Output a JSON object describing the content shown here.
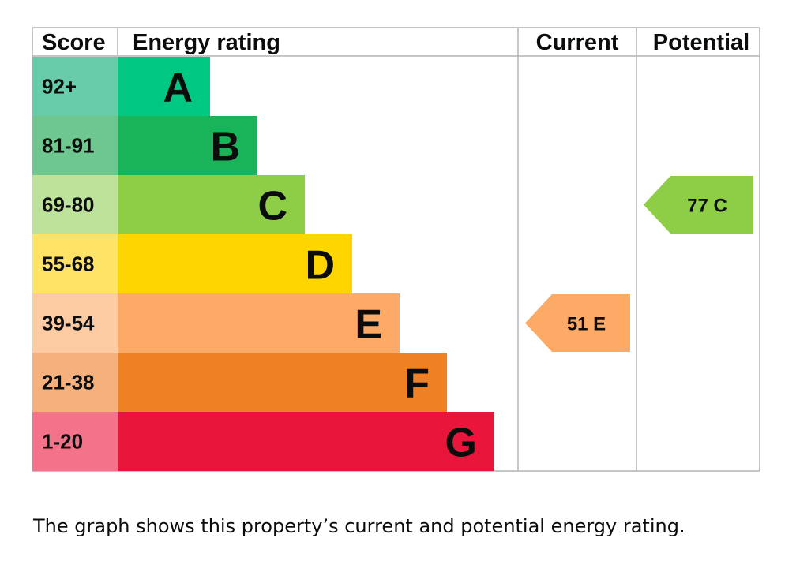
{
  "headers": {
    "score": "Score",
    "rating": "Energy rating",
    "current": "Current",
    "potential": "Potential"
  },
  "bands": [
    {
      "score": "92+",
      "letter": "A",
      "color": "#00c781",
      "score_color": "#66ccaa"
    },
    {
      "score": "81-91",
      "letter": "B",
      "color": "#19b459",
      "score_color": "#6ec78f"
    },
    {
      "score": "69-80",
      "letter": "C",
      "color": "#8dce46",
      "score_color": "#bde29a"
    },
    {
      "score": "55-68",
      "letter": "D",
      "color": "#ffd500",
      "score_color": "#ffe366"
    },
    {
      "score": "39-54",
      "letter": "E",
      "color": "#fcaa65",
      "score_color": "#fdcba2"
    },
    {
      "score": "21-38",
      "letter": "F",
      "color": "#ef8023",
      "score_color": "#f5b07b"
    },
    {
      "score": "1-20",
      "letter": "G",
      "color": "#e9153b",
      "score_color": "#f2738a"
    }
  ],
  "current": {
    "value": 51,
    "band": "E",
    "label": "51 E",
    "color": "#fcaa65"
  },
  "potential": {
    "value": 77,
    "band": "C",
    "label": "77 C",
    "color": "#8dce46"
  },
  "chart_data": {
    "type": "bar",
    "categories": [
      "A",
      "B",
      "C",
      "D",
      "E",
      "F",
      "G"
    ],
    "score_ranges": [
      "92+",
      "81-91",
      "69-80",
      "55-68",
      "39-54",
      "21-38",
      "1-20"
    ],
    "current": {
      "score": 51,
      "rating": "E"
    },
    "potential": {
      "score": 77,
      "rating": "C"
    }
  },
  "caption": "The graph shows this property’s current and potential energy rating."
}
